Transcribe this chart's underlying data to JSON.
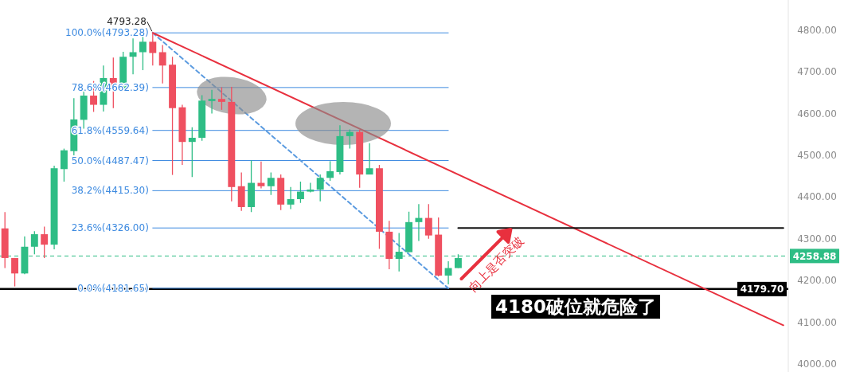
{
  "chart_data": {
    "type": "candlestick",
    "categories": [
      null,
      null,
      null,
      null,
      null,
      null,
      null,
      null,
      null,
      null,
      null,
      null,
      null,
      null,
      null,
      null,
      null,
      null,
      null,
      null,
      null,
      null,
      null,
      null,
      null,
      null,
      null,
      null,
      null,
      null,
      null,
      null,
      null,
      null,
      null,
      null,
      null,
      null,
      null,
      null,
      null,
      null,
      null,
      null,
      null,
      null,
      null,
      null,
      null,
      null,
      null,
      null,
      null,
      null,
      null,
      null,
      null,
      null,
      null,
      null,
      null,
      null,
      null,
      null,
      null,
      null,
      null,
      null,
      null,
      null,
      null,
      null,
      null,
      null,
      null,
      null,
      null,
      null,
      null,
      null
    ],
    "ohlc": [
      [
        4325,
        4364,
        4230,
        4254
      ],
      [
        4254,
        4254,
        4186,
        4217
      ],
      [
        4217,
        4306,
        4215,
        4281
      ],
      [
        4281,
        4318,
        4263,
        4311
      ],
      [
        4311,
        4329,
        4254,
        4286
      ],
      [
        4286,
        4475,
        4275,
        4469
      ],
      [
        4467,
        4516,
        4437,
        4512
      ],
      [
        4510,
        4637,
        4500,
        4586
      ],
      [
        4585,
        4653,
        4564,
        4643
      ],
      [
        4643,
        4678,
        4604,
        4621
      ],
      [
        4621,
        4715,
        4605,
        4685
      ],
      [
        4685,
        4734,
        4613,
        4659
      ],
      [
        4659,
        4748,
        4659,
        4736
      ],
      [
        4736,
        4780,
        4694,
        4747
      ],
      [
        4747,
        4790,
        4704,
        4772
      ],
      [
        4772,
        4793.28,
        4715,
        4745
      ],
      [
        4747,
        4764,
        4672,
        4715
      ],
      [
        4717,
        4736,
        4453,
        4613
      ],
      [
        4615,
        4621,
        4477,
        4532
      ],
      [
        4532,
        4567,
        4448,
        4542
      ],
      [
        4542,
        4644,
        4535,
        4631
      ],
      [
        4630,
        4657,
        4600,
        4635
      ],
      [
        4635,
        4663,
        4609,
        4628
      ],
      [
        4628,
        4664,
        4390,
        4424
      ],
      [
        4426,
        4459,
        4367,
        4376
      ],
      [
        4376,
        4488,
        4364,
        4434
      ],
      [
        4434,
        4485,
        4421,
        4426
      ],
      [
        4426,
        4459,
        4405,
        4446
      ],
      [
        4446,
        4454,
        4369,
        4382
      ],
      [
        4382,
        4424,
        4371,
        4395
      ],
      [
        4395,
        4437,
        4386,
        4413
      ],
      [
        4413,
        4434,
        4411,
        4418
      ],
      [
        4418,
        4454,
        4390,
        4446
      ],
      [
        4446,
        4486,
        4439,
        4462
      ],
      [
        4460,
        4572,
        4454,
        4546
      ],
      [
        4546,
        4562,
        4516,
        4556
      ],
      [
        4556,
        4561,
        4422,
        4454
      ],
      [
        4454,
        4529,
        4454,
        4469
      ],
      [
        4469,
        4477,
        4276,
        4317
      ],
      [
        4317,
        4343,
        4227,
        4252
      ],
      [
        4252,
        4314,
        4222,
        4269
      ],
      [
        4268,
        4365,
        4268,
        4340
      ],
      [
        4340,
        4383,
        4295,
        4350
      ],
      [
        4350,
        4383,
        4300,
        4308
      ],
      [
        4310,
        4351,
        4210,
        4212
      ],
      [
        4212,
        4246,
        4191,
        4230
      ],
      [
        4230,
        4263,
        4230,
        4254
      ],
      null,
      null,
      null,
      null,
      null,
      null,
      null,
      null,
      null,
      null,
      null,
      null,
      null,
      null,
      null,
      null,
      null,
      null,
      null,
      null,
      null,
      null,
      null,
      null,
      null,
      null,
      null,
      null,
      null,
      null,
      null,
      null,
      null
    ],
    "colors": [
      "#ef5060",
      "#ef5060",
      "#2ebd85",
      "#2ebd85",
      "#ef5060",
      "#2ebd85",
      "#2ebd85",
      "#2ebd85",
      "#2ebd85",
      "#ef5060",
      "#2ebd85",
      "#ef5060",
      "#2ebd85",
      "#2ebd85",
      "#2ebd85",
      "#ef5060",
      "#ef5060",
      "#ef5060",
      "#ef5060",
      "#2ebd85",
      "#2ebd85",
      "#2ebd85",
      "#ef5060",
      "#ef5060",
      "#ef5060",
      "#2ebd85",
      "#ef5060",
      "#2ebd85",
      "#ef5060",
      "#2ebd85",
      "#2ebd85",
      "#2ebd85",
      "#2ebd85",
      "#2ebd85",
      "#2ebd85",
      "#2ebd85",
      "#ef5060",
      "#2ebd85",
      "#ef5060",
      "#ef5060",
      "#2ebd85",
      "#2ebd85",
      "#2ebd85",
      "#ef5060",
      "#ef5060",
      "#2ebd85",
      "#2ebd85",
      null,
      null,
      null,
      null,
      null,
      null,
      null,
      null,
      null,
      null,
      null,
      null,
      null,
      null,
      null,
      null,
      null,
      null,
      null,
      null,
      null,
      null,
      null,
      null,
      null,
      null,
      null,
      null,
      null,
      null,
      null,
      null,
      null
    ],
    "ylim": [
      3981,
      4872
    ],
    "yticks": [
      {
        "value": 4000,
        "label": "4000.00"
      },
      {
        "value": 4100,
        "label": "4100.00"
      },
      {
        "value": 4200,
        "label": "4200.00"
      },
      {
        "value": 4300,
        "label": "4300.00"
      },
      {
        "value": 4400,
        "label": "4400.00"
      },
      {
        "value": 4500,
        "label": "4500.00"
      },
      {
        "value": 4600,
        "label": "4600.00"
      },
      {
        "value": 4700,
        "label": "4700.00"
      },
      {
        "value": 4800,
        "label": "4800.00"
      }
    ],
    "tick_labels": "y",
    "grid": false,
    "series": [
      {
        "type": "line",
        "name": "100.0%(4793.28)",
        "color": "#3d8ae0",
        "values": [
          null,
          null,
          null,
          null,
          null,
          null,
          null,
          null,
          null,
          null,
          null,
          null,
          null,
          null,
          null,
          4793.28,
          null,
          null,
          null,
          null,
          null,
          null,
          null,
          null,
          null,
          null,
          null,
          null,
          null,
          null,
          null,
          null,
          null,
          null,
          null,
          null,
          null,
          null,
          null,
          null,
          null,
          null,
          null,
          null,
          null,
          4793.28,
          null,
          null,
          null,
          null,
          null,
          null,
          null,
          null,
          null,
          null,
          null,
          null,
          null,
          null,
          null,
          null,
          null,
          null,
          null,
          null,
          null,
          null,
          null,
          null,
          null,
          null,
          null,
          null,
          null,
          null,
          null,
          null,
          null,
          null
        ]
      },
      {
        "type": "line",
        "name": "78.6%(4662.39)",
        "color": "#3d8ae0",
        "values": [
          null,
          null,
          null,
          null,
          null,
          null,
          null,
          null,
          null,
          null,
          null,
          null,
          null,
          null,
          null,
          4662.39,
          null,
          null,
          null,
          null,
          null,
          null,
          null,
          null,
          null,
          null,
          null,
          null,
          null,
          null,
          null,
          null,
          null,
          null,
          null,
          null,
          null,
          null,
          null,
          null,
          null,
          null,
          null,
          null,
          null,
          4662.39,
          null,
          null,
          null,
          null,
          null,
          null,
          null,
          null,
          null,
          null,
          null,
          null,
          null,
          null,
          null,
          null,
          null,
          null,
          null,
          null,
          null,
          null,
          null,
          null,
          null,
          null,
          null,
          null,
          null,
          null,
          null,
          null,
          null,
          null
        ]
      },
      {
        "type": "line",
        "name": "61.8%(4559.64)",
        "color": "#3d8ae0",
        "values": [
          null,
          null,
          null,
          null,
          null,
          null,
          null,
          null,
          null,
          null,
          null,
          null,
          null,
          null,
          null,
          4559.64,
          null,
          null,
          null,
          null,
          null,
          null,
          null,
          null,
          null,
          null,
          null,
          null,
          null,
          null,
          null,
          null,
          null,
          null,
          null,
          null,
          null,
          null,
          null,
          null,
          null,
          null,
          null,
          null,
          null,
          4559.64,
          null,
          null,
          null,
          null,
          null,
          null,
          null,
          null,
          null,
          null,
          null,
          null,
          null,
          null,
          null,
          null,
          null,
          null,
          null,
          null,
          null,
          null,
          null,
          null,
          null,
          null,
          null,
          null,
          null,
          null,
          null,
          null,
          null,
          null
        ]
      },
      {
        "type": "line",
        "name": "50.0%(4487.47)",
        "color": "#3d8ae0",
        "values": [
          null,
          null,
          null,
          null,
          null,
          null,
          null,
          null,
          null,
          null,
          null,
          null,
          null,
          null,
          null,
          4487.47,
          null,
          null,
          null,
          null,
          null,
          null,
          null,
          null,
          null,
          null,
          null,
          null,
          null,
          null,
          null,
          null,
          null,
          null,
          null,
          null,
          null,
          null,
          null,
          null,
          null,
          null,
          null,
          null,
          null,
          4487.47,
          null,
          null,
          null,
          null,
          null,
          null,
          null,
          null,
          null,
          null,
          null,
          null,
          null,
          null,
          null,
          null,
          null,
          null,
          null,
          null,
          null,
          null,
          null,
          null,
          null,
          null,
          null,
          null,
          null,
          null,
          null,
          null,
          null,
          null
        ]
      },
      {
        "type": "line",
        "name": "38.2%(4415.30)",
        "color": "#3d8ae0",
        "values": [
          null,
          null,
          null,
          null,
          null,
          null,
          null,
          null,
          null,
          null,
          null,
          null,
          null,
          null,
          null,
          4415.3,
          null,
          null,
          null,
          null,
          null,
          null,
          null,
          null,
          null,
          null,
          null,
          null,
          null,
          null,
          null,
          null,
          null,
          null,
          null,
          null,
          null,
          null,
          null,
          null,
          null,
          null,
          null,
          null,
          null,
          4415.3,
          null,
          null,
          null,
          null,
          null,
          null,
          null,
          null,
          null,
          null,
          null,
          null,
          null,
          null,
          null,
          null,
          null,
          null,
          null,
          null,
          null,
          null,
          null,
          null,
          null,
          null,
          null,
          null,
          null,
          null,
          null,
          null,
          null,
          null
        ]
      },
      {
        "type": "line",
        "name": "23.6%(4326.00)",
        "color": "#3d8ae0",
        "values": [
          null,
          null,
          null,
          null,
          null,
          null,
          null,
          null,
          null,
          null,
          null,
          null,
          null,
          null,
          null,
          4326.0,
          null,
          null,
          null,
          null,
          null,
          null,
          null,
          null,
          null,
          null,
          null,
          null,
          null,
          null,
          null,
          null,
          null,
          null,
          null,
          null,
          null,
          null,
          null,
          null,
          null,
          null,
          null,
          null,
          null,
          4326.0,
          null,
          null,
          null,
          null,
          null,
          null,
          null,
          null,
          null,
          null,
          null,
          null,
          null,
          null,
          null,
          null,
          null,
          null,
          null,
          null,
          null,
          null,
          null,
          null,
          null,
          null,
          null,
          null,
          null,
          null,
          null,
          null,
          null,
          null
        ]
      },
      {
        "type": "line",
        "name": "0.0%(4181.65)",
        "color": "#3d8ae0",
        "values": [
          null,
          null,
          null,
          null,
          null,
          null,
          null,
          null,
          null,
          null,
          null,
          null,
          null,
          null,
          null,
          4181.65,
          null,
          null,
          null,
          null,
          null,
          null,
          null,
          null,
          null,
          null,
          null,
          null,
          null,
          null,
          null,
          null,
          null,
          null,
          null,
          null,
          null,
          null,
          null,
          null,
          null,
          null,
          null,
          null,
          null,
          4181.65,
          null,
          null,
          null,
          null,
          null,
          null,
          null,
          null,
          null,
          null,
          null,
          null,
          null,
          null,
          null,
          null,
          null,
          null,
          null,
          null,
          null,
          null,
          null,
          null,
          null,
          null,
          null,
          null,
          null,
          null,
          null,
          null,
          null,
          null
        ]
      },
      {
        "type": "line",
        "color": "#5b9be0",
        "line_style": "dashed",
        "values": [
          null,
          null,
          null,
          null,
          null,
          null,
          null,
          null,
          null,
          null,
          null,
          null,
          null,
          null,
          null,
          4793.28,
          null,
          null,
          null,
          null,
          null,
          null,
          null,
          null,
          null,
          null,
          null,
          null,
          null,
          null,
          null,
          null,
          null,
          null,
          null,
          null,
          null,
          null,
          null,
          null,
          null,
          null,
          null,
          null,
          null,
          4181.65,
          null,
          null,
          null,
          null,
          null,
          null,
          null,
          null,
          null,
          null,
          null,
          null,
          null,
          null,
          null,
          null,
          null,
          null,
          null,
          null,
          null,
          null,
          null,
          null,
          null,
          null,
          null,
          null,
          null,
          null,
          null,
          null,
          null,
          null
        ]
      },
      {
        "type": "line",
        "color": "#e8303e",
        "values": [
          null,
          null,
          null,
          null,
          null,
          null,
          null,
          null,
          null,
          null,
          null,
          null,
          null,
          null,
          null,
          4793.28,
          null,
          null,
          null,
          null,
          null,
          null,
          null,
          null,
          null,
          null,
          null,
          null,
          null,
          null,
          null,
          null,
          null,
          null,
          null,
          null,
          null,
          null,
          null,
          null,
          null,
          null,
          null,
          null,
          null,
          null,
          null,
          null,
          null,
          null,
          null,
          null,
          null,
          null,
          null,
          null,
          null,
          null,
          null,
          null,
          null,
          null,
          null,
          null,
          null,
          null,
          null,
          null,
          null,
          null,
          null,
          null,
          null,
          null,
          null,
          null,
          null,
          null,
          null,
          4093
        ]
      },
      {
        "type": "line",
        "color": "#111111",
        "values": [
          null,
          null,
          null,
          null,
          null,
          null,
          null,
          null,
          null,
          null,
          null,
          null,
          null,
          null,
          null,
          null,
          null,
          null,
          null,
          null,
          null,
          null,
          null,
          null,
          null,
          null,
          null,
          null,
          null,
          null,
          null,
          null,
          null,
          null,
          null,
          null,
          null,
          null,
          null,
          null,
          null,
          null,
          null,
          null,
          null,
          null,
          4326,
          null,
          null,
          null,
          null,
          null,
          null,
          null,
          null,
          null,
          null,
          null,
          null,
          null,
          null,
          null,
          null,
          null,
          null,
          null,
          null,
          null,
          null,
          null,
          null,
          null,
          null,
          null,
          null,
          null,
          null,
          null,
          null,
          4326
        ]
      }
    ],
    "ref_lines": [
      {
        "axis": "y",
        "value": 4258.88,
        "label": "4258.88",
        "color": "#2ebd85",
        "line_style": "dashed"
      },
      {
        "axis": "y",
        "value": 4179.7,
        "label": "4179.70",
        "color": "#000000"
      }
    ],
    "annotations": [
      "4793.28",
      "向上是否突破",
      "4180破位就危险了"
    ]
  }
}
